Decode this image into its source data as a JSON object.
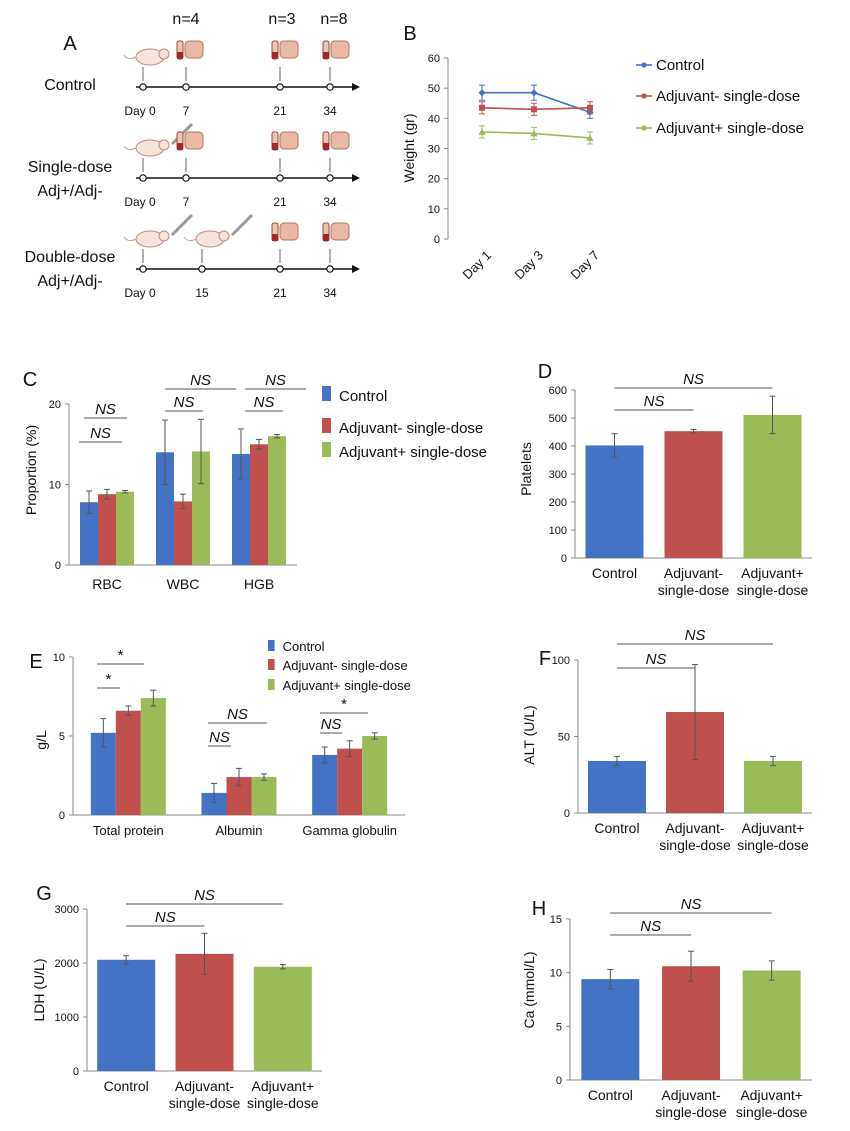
{
  "colors": {
    "control": "#4472c4",
    "adj_minus": "#c0504d",
    "adj_plus": "#9bbb59",
    "axis": "#000000",
    "sig": "#555555",
    "grid": "#bfbfbf"
  },
  "panel_a": {
    "label": "A",
    "n_labels": [
      "n=4",
      "n=3",
      "n=8"
    ],
    "rows": [
      {
        "name": "Control",
        "days": [
          "Day 0",
          "7",
          "21",
          "34"
        ]
      },
      {
        "name": "Single-dose\nAdj+/Adj-",
        "days": [
          "Day 0",
          "7",
          "21",
          "34"
        ]
      },
      {
        "name": "Double-dose\nAdj+/Adj-",
        "days": [
          "Day 0",
          "15",
          "21",
          "34"
        ]
      }
    ]
  },
  "chart_data": [
    {
      "panel": "B",
      "type": "line",
      "title": "",
      "ylabel": "Weight (gr)",
      "xlabel": "",
      "categories": [
        "Day 1",
        "Day 3",
        "Day 7"
      ],
      "ylim": [
        0,
        60
      ],
      "yticks": [
        0,
        10,
        20,
        30,
        40,
        50,
        60
      ],
      "legend": [
        "Control",
        "Adjuvant- single-dose",
        "Adjuvant+ single-dose"
      ],
      "series": [
        {
          "name": "Control",
          "values": [
            48.5,
            48.5,
            42
          ],
          "err": [
            2.5,
            2.5,
            2
          ]
        },
        {
          "name": "Adjuvant- single-dose",
          "values": [
            43.5,
            43,
            43.5
          ],
          "err": [
            2,
            2,
            2
          ]
        },
        {
          "name": "Adjuvant+ single-dose",
          "values": [
            35.5,
            35,
            33.5
          ],
          "err": [
            2,
            2,
            2
          ]
        }
      ]
    },
    {
      "panel": "C",
      "type": "bar",
      "ylabel": "Proportion (%)",
      "categories": [
        "RBC",
        "WBC",
        "HGB"
      ],
      "ylim": [
        0,
        20
      ],
      "yticks": [
        0,
        10,
        20
      ],
      "legend": [
        "Control",
        "Adjuvant- single-dose",
        "Adjuvant+ single-dose"
      ],
      "series": [
        {
          "name": "Control",
          "values": [
            7.8,
            14,
            13.8
          ],
          "err": [
            1.4,
            4,
            3.1
          ]
        },
        {
          "name": "Adjuvant- single-dose",
          "values": [
            8.8,
            7.9,
            15
          ],
          "err": [
            0.6,
            0.9,
            0.6
          ]
        },
        {
          "name": "Adjuvant+ single-dose",
          "values": [
            9.1,
            14.1,
            16
          ],
          "err": [
            0.15,
            4,
            0.2
          ]
        }
      ],
      "annotations": [
        "NS",
        "NS",
        "NS",
        "NS",
        "NS",
        "NS"
      ]
    },
    {
      "panel": "D",
      "type": "bar",
      "ylabel": "Platelets",
      "categories": [
        "Control",
        "Adjuvant-\nsingle-dose",
        "Adjuvant+\nsingle-dose"
      ],
      "ylim": [
        0,
        600
      ],
      "yticks": [
        0,
        100,
        200,
        300,
        400,
        500,
        600
      ],
      "values": [
        402,
        453,
        511
      ],
      "err": [
        42,
        6,
        67
      ],
      "annotations": [
        "NS",
        "NS"
      ]
    },
    {
      "panel": "E",
      "type": "bar",
      "ylabel": "g/L",
      "categories": [
        "Total protein",
        "Albumin",
        "Gamma globulin"
      ],
      "ylim": [
        0,
        10
      ],
      "yticks": [
        0,
        5,
        10
      ],
      "legend": [
        "Control",
        "Adjuvant- single-dose",
        "Adjuvant+ single-dose"
      ],
      "series": [
        {
          "name": "Control",
          "values": [
            5.2,
            1.4,
            3.8
          ],
          "err": [
            0.9,
            0.6,
            0.5
          ]
        },
        {
          "name": "Adjuvant- single-dose",
          "values": [
            6.6,
            2.4,
            4.2
          ],
          "err": [
            0.3,
            0.55,
            0.5
          ]
        },
        {
          "name": "Adjuvant+ single-dose",
          "values": [
            7.4,
            2.4,
            5
          ],
          "err": [
            0.5,
            0.2,
            0.2
          ]
        }
      ],
      "annotations": [
        "*",
        "*",
        "NS",
        "NS",
        "NS",
        "*"
      ]
    },
    {
      "panel": "F",
      "type": "bar",
      "ylabel": "ALT (U/L)",
      "categories": [
        "Control",
        "Adjuvant-\nsingle-dose",
        "Adjuvant+\nsingle-dose"
      ],
      "ylim": [
        0,
        100
      ],
      "yticks": [
        0,
        50,
        100
      ],
      "values": [
        34,
        66,
        34
      ],
      "err": [
        3,
        31,
        3
      ],
      "annotations": [
        "NS",
        "NS"
      ]
    },
    {
      "panel": "G",
      "type": "bar",
      "ylabel": "LDH (U/L)",
      "categories": [
        "Control",
        "Adjuvant-\nsingle-dose",
        "Adjuvant+\nsingle-dose"
      ],
      "ylim": [
        0,
        3000
      ],
      "yticks": [
        0,
        1000,
        2000,
        3000
      ],
      "values": [
        2060,
        2170,
        1930
      ],
      "err": [
        75,
        380,
        40
      ],
      "annotations": [
        "NS",
        "NS"
      ]
    },
    {
      "panel": "H",
      "type": "bar",
      "ylabel": "Ca (mmol/L)",
      "categories": [
        "Control",
        "Adjuvant-\nsingle-dose",
        "Adjuvant+\nsingle-dose"
      ],
      "ylim": [
        0,
        15
      ],
      "yticks": [
        0,
        5,
        10,
        15
      ],
      "values": [
        9.4,
        10.6,
        10.2
      ],
      "err": [
        0.9,
        1.4,
        0.9
      ],
      "annotations": [
        "NS",
        "NS"
      ]
    }
  ]
}
